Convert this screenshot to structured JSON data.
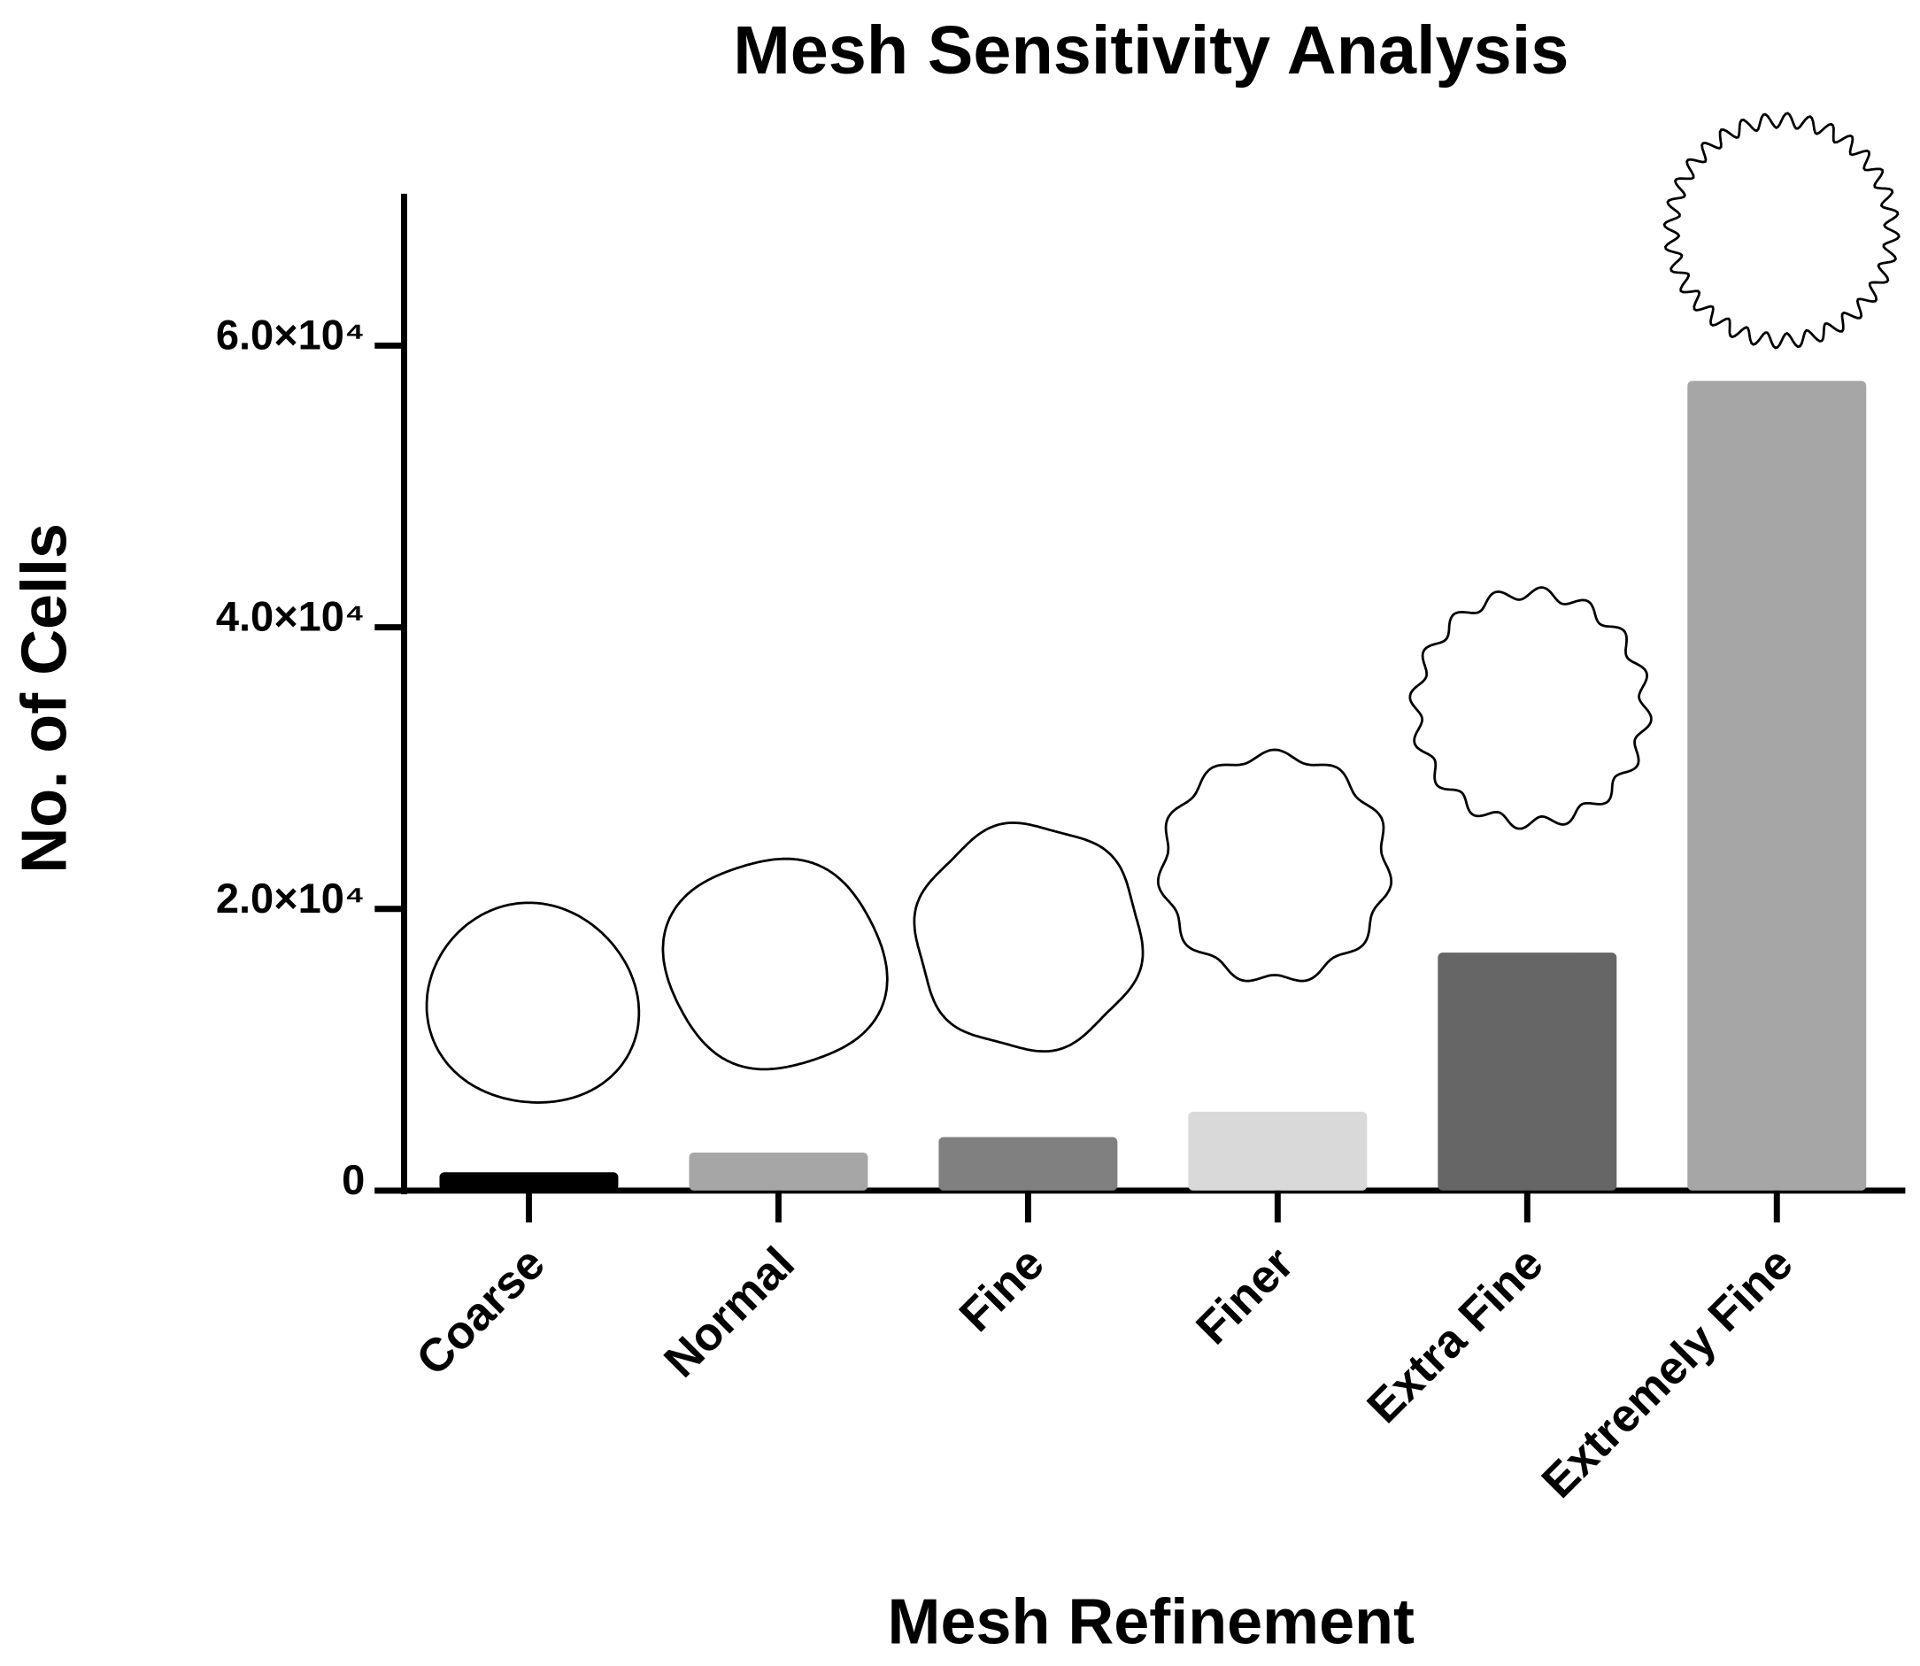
{
  "chart_data": {
    "type": "bar",
    "title": "Mesh Sensitivity Analysis",
    "x_label": "Mesh Refinement",
    "y_label": "No. of Cells",
    "categories": [
      "Coarse",
      "Normal",
      "Fine",
      "Finer",
      "Extra Fine",
      "Extremely Fine"
    ],
    "values": [
      1300,
      2700,
      3800,
      5600,
      16900,
      57500
    ],
    "colors": [
      "#000000",
      "#a6a6a6",
      "#808080",
      "#d9d9d9",
      "#666666",
      "#a6a6a6"
    ],
    "ylim": [
      0,
      70000
    ],
    "yticks": [
      0,
      {
        "value": 20000,
        "label": "2.0×10⁴"
      },
      {
        "value": 40000,
        "label": "4.0×10⁴"
      },
      {
        "value": 60000,
        "label": "6.0×10⁴"
      }
    ],
    "grid": false
  }
}
